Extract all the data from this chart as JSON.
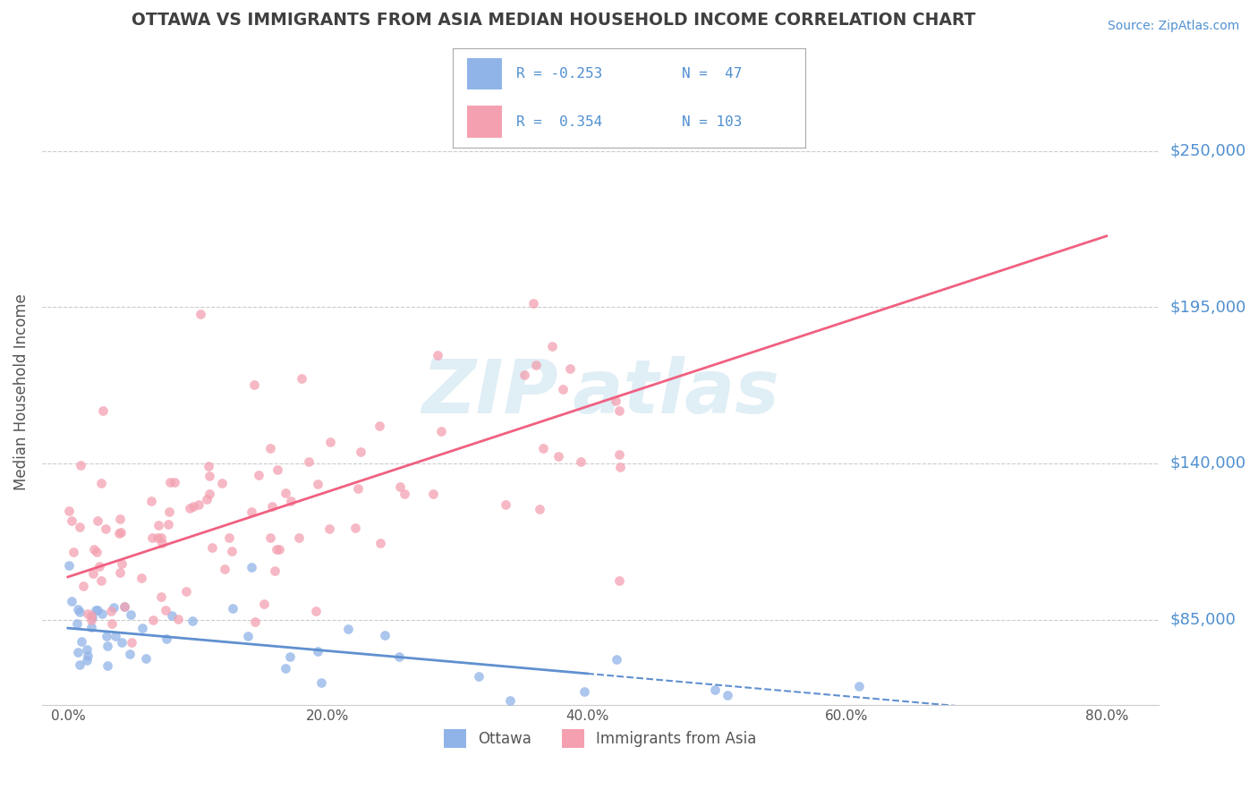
{
  "title": "OTTAWA VS IMMIGRANTS FROM ASIA MEDIAN HOUSEHOLD INCOME CORRELATION CHART",
  "source_text": "Source: ZipAtlas.com",
  "ylabel": "Median Household Income",
  "xlabel": "",
  "legend1_r": "R = -0.253",
  "legend1_n": "N =  47",
  "legend2_r": "R =  0.354",
  "legend2_n": "N = 103",
  "legend_bottom1": "Ottawa",
  "legend_bottom2": "Immigrants from Asia",
  "ytick_labels": [
    "$85,000",
    "$140,000",
    "$195,000",
    "$250,000"
  ],
  "ytick_values": [
    85000,
    140000,
    195000,
    250000
  ],
  "xtick_labels": [
    "0.0%",
    "20.0%",
    "40.0%",
    "60.0%",
    "80.0%"
  ],
  "xtick_values": [
    0.0,
    20.0,
    40.0,
    60.0,
    80.0
  ],
  "xlim": [
    -2,
    84
  ],
  "ylim": [
    55000,
    275000
  ],
  "color_ottawa": "#90b4e8",
  "color_asia": "#f4a0b0",
  "color_line_ottawa": "#6090d0",
  "color_line_asia": "#f06080",
  "color_title": "#404040",
  "color_yticks": "#5090d0",
  "color_source": "#5090d0",
  "background_color": "#ffffff",
  "grid_color": "#cccccc",
  "ottawa_intercept": 82000,
  "ottawa_slope": -400,
  "asia_intercept": 100000,
  "asia_slope": 1500,
  "watermark_text": "ZIP atlas",
  "watermark_color": "#cce4f0",
  "watermark_alpha": 0.6
}
